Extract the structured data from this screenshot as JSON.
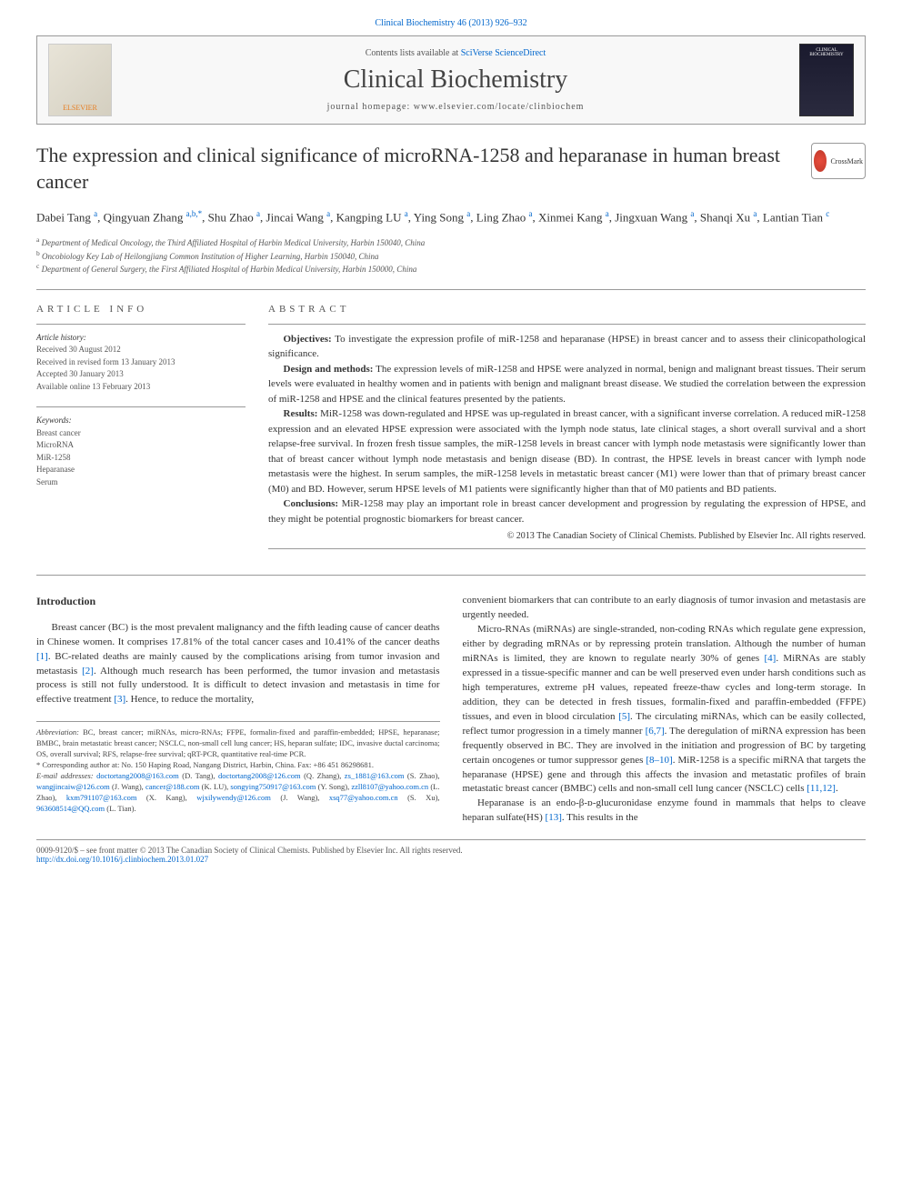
{
  "top_link": "Clinical Biochemistry 46 (2013) 926–932",
  "header": {
    "contents_available": "Contents lists available at",
    "contents_link": "SciVerse ScienceDirect",
    "journal_name": "Clinical Biochemistry",
    "homepage": "journal homepage: www.elsevier.com/locate/clinbiochem",
    "publisher_name": "ELSEVIER",
    "cover_text": "CLINICAL BIOCHEMISTRY"
  },
  "crossmark": "CrossMark",
  "title": "The expression and clinical significance of microRNA-1258 and heparanase in human breast cancer",
  "authors_html": "Dabei Tang <sup>a</sup>, Qingyuan Zhang <sup>a,b,*</sup>, Shu Zhao <sup>a</sup>, Jincai Wang <sup>a</sup>, Kangping LU <sup>a</sup>, Ying Song <sup>a</sup>, Ling Zhao <sup>a</sup>, Xinmei Kang <sup>a</sup>, Jingxuan Wang <sup>a</sup>, Shanqi Xu <sup>a</sup>, Lantian Tian <sup>c</sup>",
  "affiliations": [
    {
      "sup": "a",
      "text": "Department of Medical Oncology, the Third Affiliated Hospital of Harbin Medical University, Harbin 150040, China"
    },
    {
      "sup": "b",
      "text": "Oncobiology Key Lab of Heilongjiang Common Institution of Higher Learning, Harbin 150040, China"
    },
    {
      "sup": "c",
      "text": "Department of General Surgery, the First Affiliated Hospital of Harbin Medical University, Harbin 150000, China"
    }
  ],
  "article_info": {
    "header": "ARTICLE INFO",
    "history_label": "Article history:",
    "history": [
      "Received 30 August 2012",
      "Received in revised form 13 January 2013",
      "Accepted 30 January 2013",
      "Available online 13 February 2013"
    ],
    "keywords_label": "Keywords:",
    "keywords": [
      "Breast cancer",
      "MicroRNA",
      "MiR-1258",
      "Heparanase",
      "Serum"
    ]
  },
  "abstract": {
    "header": "ABSTRACT",
    "sections": [
      {
        "label": "Objectives:",
        "text": "To investigate the expression profile of miR-1258 and heparanase (HPSE) in breast cancer and to assess their clinicopathological significance."
      },
      {
        "label": "Design and methods:",
        "text": "The expression levels of miR-1258 and HPSE were analyzed in normal, benign and malignant breast tissues. Their serum levels were evaluated in healthy women and in patients with benign and malignant breast disease. We studied the correlation between the expression of miR-1258 and HPSE and the clinical features presented by the patients."
      },
      {
        "label": "Results:",
        "text": "MiR-1258 was down-regulated and HPSE was up-regulated in breast cancer, with a significant inverse correlation. A reduced miR-1258 expression and an elevated HPSE expression were associated with the lymph node status, late clinical stages, a short overall survival and a short relapse-free survival. In frozen fresh tissue samples, the miR-1258 levels in breast cancer with lymph node metastasis were significantly lower than that of breast cancer without lymph node metastasis and benign disease (BD). In contrast, the HPSE levels in breast cancer with lymph node metastasis were the highest. In serum samples, the miR-1258 levels in metastatic breast cancer (M1) were lower than that of primary breast cancer (M0) and BD. However, serum HPSE levels of M1 patients were significantly higher than that of M0 patients and BD patients."
      },
      {
        "label": "Conclusions:",
        "text": "MiR-1258 may play an important role in breast cancer development and progression by regulating the expression of HPSE, and they might be potential prognostic biomarkers for breast cancer."
      }
    ],
    "copyright": "© 2013 The Canadian Society of Clinical Chemists. Published by Elsevier Inc. All rights reserved."
  },
  "intro": {
    "header": "Introduction",
    "col1": "Breast cancer (BC) is the most prevalent malignancy and the fifth leading cause of cancer deaths in Chinese women. It comprises 17.81% of the total cancer cases and 10.41% of the cancer deaths [1]. BC-related deaths are mainly caused by the complications arising from tumor invasion and metastasis [2]. Although much research has been performed, the tumor invasion and metastasis process is still not fully understood. It is difficult to detect invasion and metastasis in time for effective treatment [3]. Hence, to reduce the mortality,",
    "col2_top": "convenient biomarkers that can contribute to an early diagnosis of tumor invasion and metastasis are urgently needed.",
    "col2_p1": "Micro-RNAs (miRNAs) are single-stranded, non-coding RNAs which regulate gene expression, either by degrading mRNAs or by repressing protein translation. Although the number of human miRNAs is limited, they are known to regulate nearly 30% of genes [4]. MiRNAs are stably expressed in a tissue-specific manner and can be well preserved even under harsh conditions such as high temperatures, extreme pH values, repeated freeze-thaw cycles and long-term storage. In addition, they can be detected in fresh tissues, formalin-fixed and paraffin-embedded (FFPE) tissues, and even in blood circulation [5]. The circulating miRNAs, which can be easily collected, reflect tumor progression in a timely manner [6,7]. The deregulation of miRNA expression has been frequently observed in BC. They are involved in the initiation and progression of BC by targeting certain oncogenes or tumor suppressor genes [8–10]. MiR-1258 is a specific miRNA that targets the heparanase (HPSE) gene and through this affects the invasion and metastatic profiles of brain metastatic breast cancer (BMBC) cells and non-small cell lung cancer (NSCLC) cells [11,12].",
    "col2_p2": "Heparanase is an endo-β-ᴅ-glucuronidase enzyme found in mammals that helps to cleave heparan sulfate(HS) [13]. This results in the"
  },
  "footnotes": {
    "abbrev_label": "Abbreviation:",
    "abbrev": "BC, breast cancer; miRNAs, micro-RNAs; FFPE, formalin-fixed and paraffin-embedded; HPSE, heparanase; BMBC, brain metastatic breast cancer; NSCLC, non-small cell lung cancer; HS, heparan sulfate; IDC, invasive ductal carcinoma; OS, overall survival; RFS, relapse-free survival; qRT-PCR, quantitative real-time PCR.",
    "corr_label": "* Corresponding author at:",
    "corr": "No. 150 Haping Road, Nangang District, Harbin, China. Fax: +86 451 86298681.",
    "email_label": "E-mail addresses:",
    "emails": "doctortang2008@163.com (D. Tang), doctortang2008@126.com (Q. Zhang), zs_1881@163.com (S. Zhao), wangjincaiw@126.com (J. Wang), cancer@188.com (K. LU), songying750917@163.com (Y. Song), zzll8107@yahoo.com.cn (L. Zhao), kxm791107@163.com (X. Kang), wjxilywendy@126.com (J. Wang), xsq77@yahoo.com.cn (S. Xu), 963608514@QQ.com (L. Tian)."
  },
  "bottom": {
    "copyright": "0009-9120/$ – see front matter © 2013 The Canadian Society of Clinical Chemists. Published by Elsevier Inc. All rights reserved.",
    "doi": "http://dx.doi.org/10.1016/j.clinbiochem.2013.01.027"
  },
  "colors": {
    "link": "#0066cc",
    "text": "#333333",
    "muted": "#555555",
    "border": "#999999",
    "orange": "#e67e22"
  }
}
